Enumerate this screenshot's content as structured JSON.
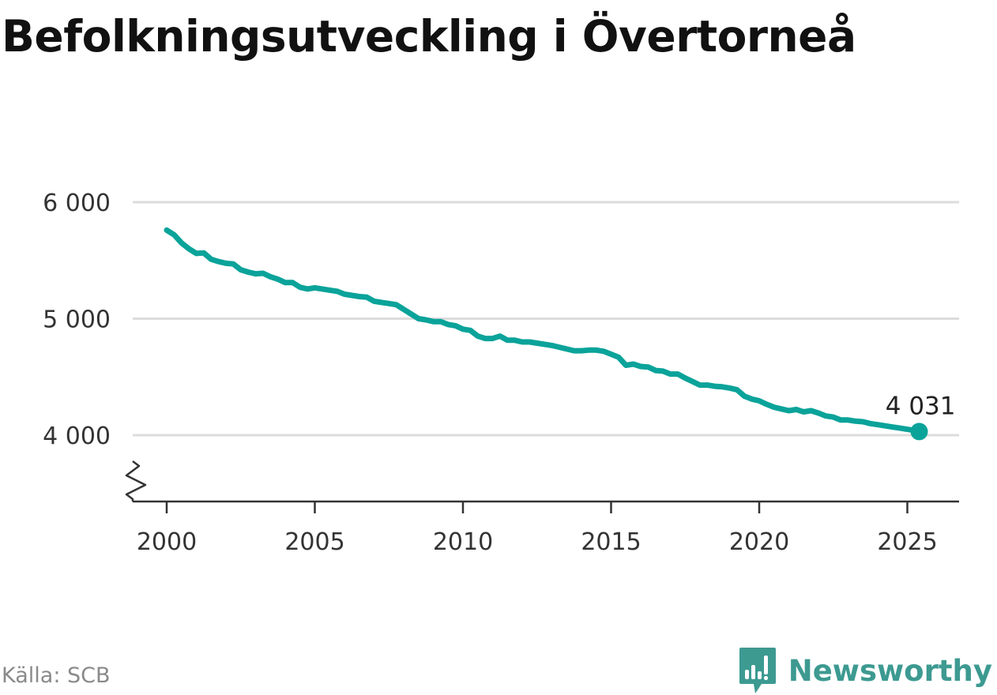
{
  "header": {
    "title": "Befolkningsutveckling i Övertorneå"
  },
  "footer": {
    "source": "Källa: SCB",
    "brand": "Newsworthy"
  },
  "colors": {
    "line": "#0aa39a",
    "grid": "#dcdcdc",
    "axis": "#333333",
    "brand": "#3d9a91"
  },
  "icons": {
    "brand_logo": "bar-chart-speech-bubble-icon"
  },
  "chart_data": {
    "type": "line",
    "title": "Befolkningsutveckling i Övertorneå",
    "xlabel": "",
    "ylabel": "",
    "xlim": [
      1999.0,
      2026.8
    ],
    "ylim": [
      3430,
      6000
    ],
    "y_axis_break": true,
    "grid": "horizontal",
    "x_ticks": [
      2000,
      2005,
      2010,
      2015,
      2020,
      2025
    ],
    "x_tick_labels": [
      "2000",
      "2005",
      "2010",
      "2015",
      "2020",
      "2025"
    ],
    "y_ticks": [
      4000,
      5000,
      6000
    ],
    "y_tick_labels": [
      "4 000",
      "5 000",
      "6 000"
    ],
    "end_label": "4 031",
    "series": [
      {
        "x": [
          2000.0,
          2000.25,
          2000.5,
          2000.75,
          2001.0,
          2001.25,
          2001.5,
          2001.75,
          2002.0,
          2002.25,
          2002.5,
          2002.75,
          2003.0,
          2003.25,
          2003.5,
          2003.75,
          2004.0,
          2004.25,
          2004.5,
          2004.75,
          2005.0,
          2005.25,
          2005.5,
          2005.75,
          2006.0,
          2006.25,
          2006.5,
          2006.75,
          2007.0,
          2007.25,
          2007.5,
          2007.75,
          2008.0,
          2008.25,
          2008.5,
          2008.75,
          2009.0,
          2009.25,
          2009.5,
          2009.75,
          2010.0,
          2010.25,
          2010.5,
          2010.75,
          2011.0,
          2011.25,
          2011.5,
          2011.75,
          2012.0,
          2012.25,
          2012.5,
          2012.75,
          2013.0,
          2013.25,
          2013.5,
          2013.75,
          2014.0,
          2014.25,
          2014.5,
          2014.75,
          2015.0,
          2015.25,
          2015.5,
          2015.75,
          2016.0,
          2016.25,
          2016.5,
          2016.75,
          2017.0,
          2017.25,
          2017.5,
          2017.75,
          2018.0,
          2018.25,
          2018.5,
          2018.75,
          2019.0,
          2019.25,
          2019.5,
          2019.75,
          2020.0,
          2020.25,
          2020.5,
          2020.75,
          2021.0,
          2021.25,
          2021.5,
          2021.75,
          2022.0,
          2022.25,
          2022.5,
          2022.75,
          2023.0,
          2023.25,
          2023.5,
          2023.75,
          2024.0,
          2024.25,
          2024.5,
          2024.75,
          2025.0,
          2025.25,
          2025.4
        ],
        "values": [
          5760,
          5720,
          5650,
          5600,
          5560,
          5565,
          5510,
          5490,
          5475,
          5470,
          5420,
          5400,
          5385,
          5390,
          5360,
          5340,
          5310,
          5310,
          5270,
          5255,
          5265,
          5255,
          5245,
          5235,
          5210,
          5200,
          5190,
          5185,
          5150,
          5140,
          5130,
          5120,
          5080,
          5040,
          5000,
          4990,
          4975,
          4975,
          4950,
          4940,
          4910,
          4900,
          4850,
          4830,
          4830,
          4850,
          4815,
          4815,
          4800,
          4800,
          4790,
          4780,
          4770,
          4755,
          4740,
          4725,
          4725,
          4730,
          4730,
          4720,
          4695,
          4670,
          4600,
          4610,
          4590,
          4585,
          4555,
          4550,
          4525,
          4525,
          4490,
          4460,
          4430,
          4430,
          4420,
          4415,
          4405,
          4390,
          4335,
          4310,
          4295,
          4265,
          4240,
          4225,
          4210,
          4220,
          4200,
          4210,
          4190,
          4165,
          4155,
          4130,
          4130,
          4120,
          4115,
          4100,
          4090,
          4080,
          4070,
          4060,
          4050,
          4040,
          4031
        ]
      }
    ]
  }
}
